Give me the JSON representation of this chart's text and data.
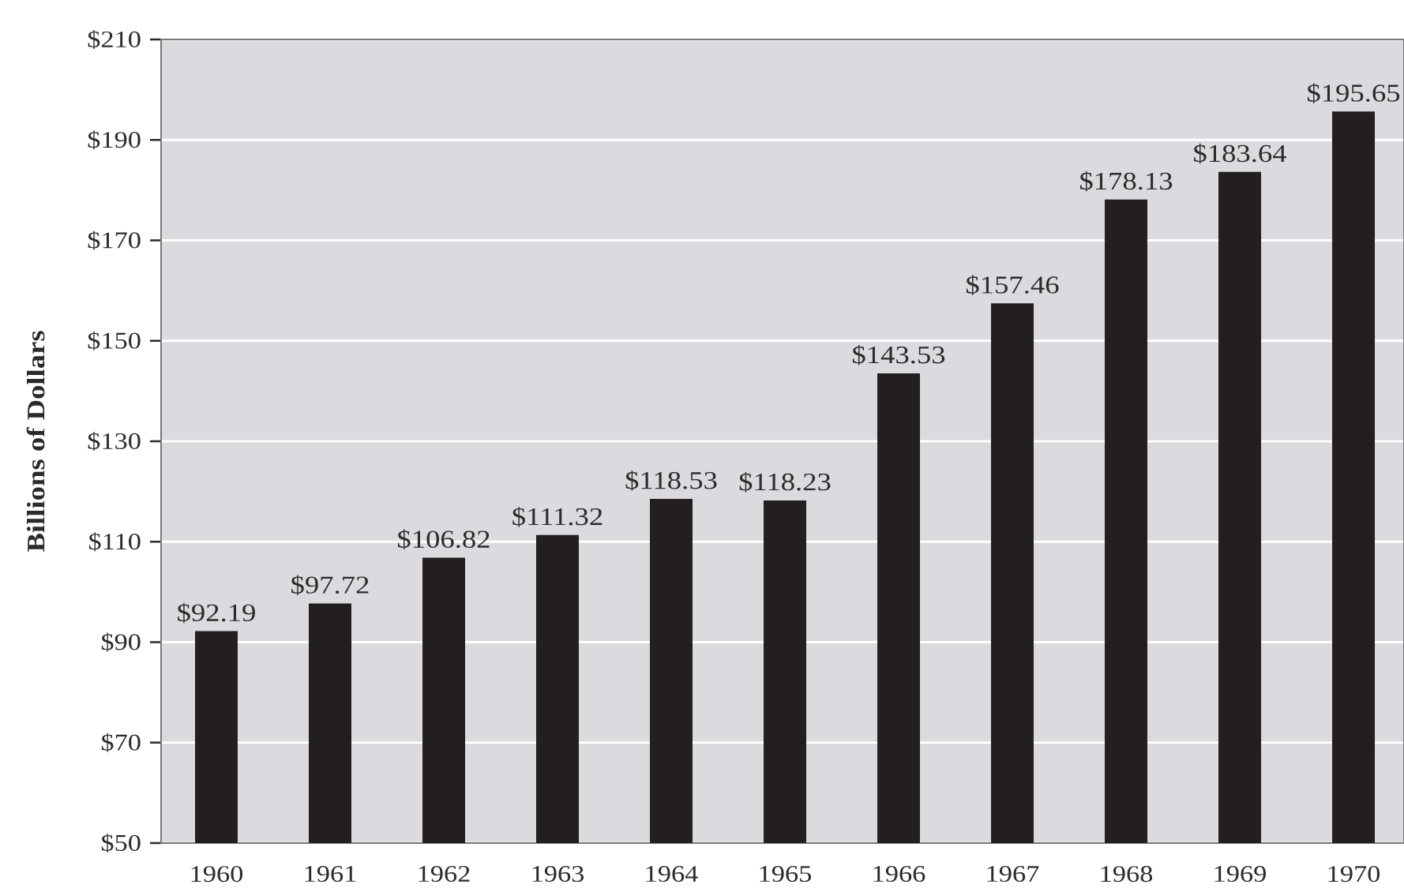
{
  "chart_data": {
    "type": "bar",
    "ylabel": "Billions of Dollars",
    "categories": [
      "1960",
      "1961",
      "1962",
      "1963",
      "1964",
      "1965",
      "1966",
      "1967",
      "1968",
      "1969",
      "1970"
    ],
    "values": [
      92.19,
      97.72,
      106.82,
      111.32,
      118.53,
      118.23,
      143.53,
      157.46,
      178.13,
      183.64,
      195.65
    ],
    "value_labels": [
      "$92.19",
      "$97.72",
      "$106.82",
      "$111.32",
      "$118.53",
      "$118.23",
      "$143.53",
      "$157.46",
      "$178.13",
      "$183.64",
      "$195.65"
    ],
    "color": "#231f20",
    "ylim": [
      50,
      210
    ],
    "yticks": [
      {
        "value": 50,
        "label": "$50"
      },
      {
        "value": 70,
        "label": "$70"
      },
      {
        "value": 90,
        "label": "$90"
      },
      {
        "value": 110,
        "label": "$110"
      },
      {
        "value": 130,
        "label": "$130"
      },
      {
        "value": 150,
        "label": "$150"
      },
      {
        "value": 170,
        "label": "$170"
      },
      {
        "value": 190,
        "label": "$190"
      },
      {
        "value": 210,
        "label": "$210"
      }
    ],
    "grid": "y"
  }
}
